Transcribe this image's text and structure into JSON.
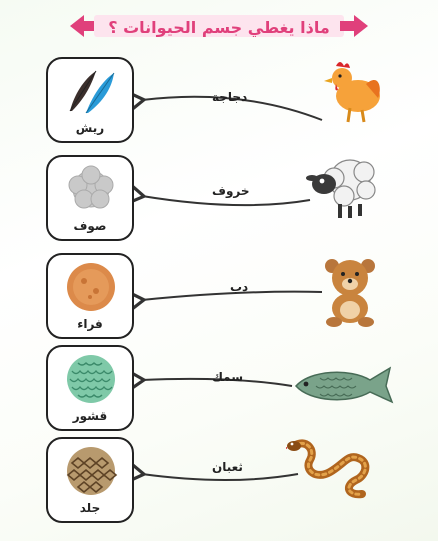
{
  "title": "ماذا يغطي جسم الحيوانات ؟",
  "rows": [
    {
      "animal": "دجاجة",
      "covering": "ريش",
      "animal_icon": "chicken-icon",
      "covering_icon": "feathers-icon"
    },
    {
      "animal": "خروف",
      "covering": "صوف",
      "animal_icon": "sheep-icon",
      "covering_icon": "wool-icon"
    },
    {
      "animal": "دب",
      "covering": "فراء",
      "animal_icon": "bear-icon",
      "covering_icon": "fur-icon"
    },
    {
      "animal": "سمك",
      "covering": "قشور",
      "animal_icon": "fish-icon",
      "covering_icon": "scales-icon"
    },
    {
      "animal": "ثعبان",
      "covering": "جلد",
      "animal_icon": "snake-icon",
      "covering_icon": "skin-icon"
    }
  ],
  "colors": {
    "title": "#e0407b",
    "banner": "#fde4ee",
    "arrow": "#333333"
  }
}
